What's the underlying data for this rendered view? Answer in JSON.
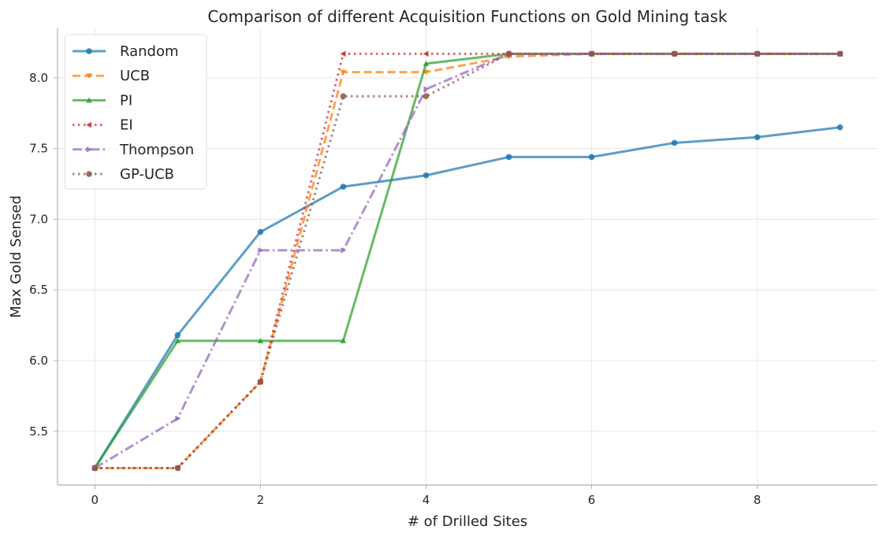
{
  "chart_data": {
    "type": "line",
    "title": "Comparison of different Acquisition Functions on Gold Mining task",
    "xlabel": "# of Drilled Sites",
    "ylabel": "Max Gold Sensed",
    "xlim": [
      -0.45,
      9.45
    ],
    "ylim": [
      5.12,
      8.35
    ],
    "xticks": [
      0,
      2,
      4,
      6,
      8
    ],
    "yticks": [
      5.5,
      6.0,
      6.5,
      7.0,
      7.5,
      8.0
    ],
    "xtick_labels": [
      "0",
      "2",
      "4",
      "6",
      "8"
    ],
    "ytick_labels": [
      "5.5",
      "6.0",
      "6.5",
      "7.0",
      "7.5",
      "8.0"
    ],
    "grid": true,
    "legend_position": "top-left",
    "x": [
      0,
      1,
      2,
      3,
      4,
      5,
      6,
      7,
      8,
      9
    ],
    "series": [
      {
        "name": "Random",
        "color": "#1f77b4",
        "dash": "solid",
        "marker": "circle",
        "values": [
          5.24,
          6.18,
          6.91,
          7.23,
          7.31,
          7.44,
          7.44,
          7.54,
          7.58,
          7.65
        ]
      },
      {
        "name": "UCB",
        "color": "#ff7f0e",
        "dash": "dashed",
        "marker": "triangle-down",
        "values": [
          5.24,
          5.24,
          5.85,
          8.04,
          8.04,
          8.15,
          8.17,
          8.17,
          8.17,
          8.17
        ]
      },
      {
        "name": "PI",
        "color": "#2ca02c",
        "dash": "solid",
        "marker": "triangle-up",
        "values": [
          5.24,
          6.14,
          6.14,
          6.14,
          8.1,
          8.17,
          8.17,
          8.17,
          8.17,
          8.17
        ]
      },
      {
        "name": "EI",
        "color": "#d62728",
        "dash": "dotted",
        "marker": "triangle-left",
        "values": [
          5.24,
          5.24,
          5.85,
          8.17,
          8.17,
          8.17,
          8.17,
          8.17,
          8.17,
          8.17
        ]
      },
      {
        "name": "Thompson",
        "color": "#9467bd",
        "dash": "dashdot",
        "marker": "triangle-right",
        "values": [
          5.24,
          5.59,
          6.78,
          6.78,
          7.92,
          8.17,
          8.17,
          8.17,
          8.17,
          8.17
        ]
      },
      {
        "name": "GP-UCB",
        "color": "#8c564b",
        "dash": "dotted",
        "marker": "circle",
        "values": [
          5.24,
          5.24,
          5.85,
          7.87,
          7.87,
          8.17,
          8.17,
          8.17,
          8.17,
          8.17
        ]
      }
    ]
  }
}
